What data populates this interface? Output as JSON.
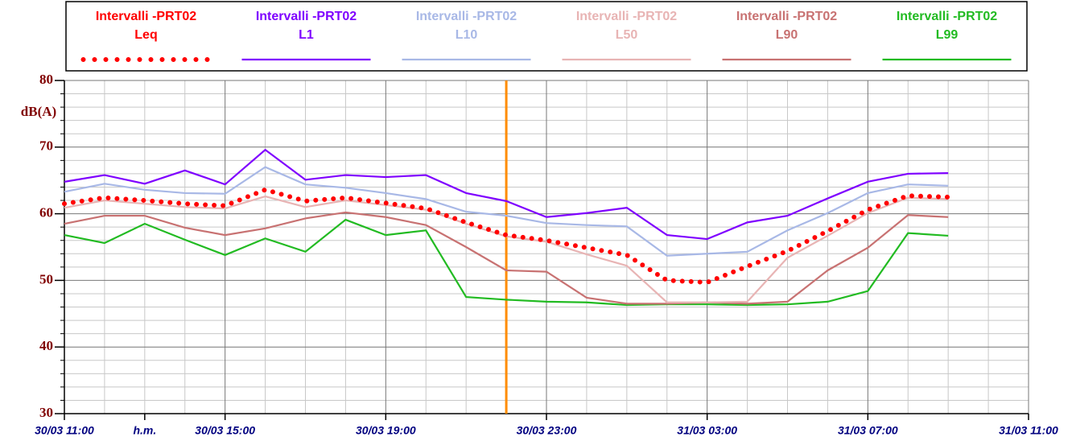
{
  "chart_data": {
    "type": "line",
    "ylabel": "dB(A)",
    "x": [
      "30/03 11:00",
      "30/03 12:00",
      "30/03 13:00",
      "30/03 14:00",
      "30/03 15:00",
      "30/03 16:00",
      "30/03 17:00",
      "30/03 18:00",
      "30/03 19:00",
      "30/03 20:00",
      "30/03 21:00",
      "30/03 22:00",
      "30/03 23:00",
      "31/03 00:00",
      "31/03 01:00",
      "31/03 02:00",
      "31/03 03:00",
      "31/03 04:00",
      "31/03 05:00",
      "31/03 06:00",
      "31/03 07:00",
      "31/03 08:00",
      "31/03 09:00"
    ],
    "series": [
      {
        "name": "Intervalli -PRT02",
        "stat": "Leq",
        "color": "#ff0000",
        "style": "dotted",
        "values": [
          61.5,
          62.4,
          62.0,
          61.5,
          61.2,
          63.6,
          61.9,
          62.4,
          61.6,
          60.8,
          58.7,
          56.8,
          56.0,
          54.9,
          53.8,
          50.0,
          49.7,
          52.1,
          54.4,
          57.4,
          60.6,
          62.7,
          62.5
        ]
      },
      {
        "name": "Intervalli -PRT02",
        "stat": "L1",
        "color": "#7f00ff",
        "style": "solid",
        "values": [
          64.8,
          65.8,
          64.5,
          66.5,
          64.4,
          69.6,
          65.1,
          65.8,
          65.5,
          65.8,
          63.1,
          61.9,
          59.5,
          60.1,
          60.9,
          56.8,
          56.2,
          58.7,
          59.7,
          62.3,
          64.8,
          66.0,
          66.1
        ]
      },
      {
        "name": "Intervalli -PRT02",
        "stat": "L10",
        "color": "#a8b8e6",
        "style": "solid",
        "values": [
          63.3,
          64.5,
          63.6,
          63.1,
          63.0,
          67.0,
          64.4,
          63.9,
          63.1,
          62.2,
          60.3,
          59.7,
          58.6,
          58.3,
          58.1,
          53.7,
          54.0,
          54.3,
          57.5,
          60.1,
          63.1,
          64.4,
          64.2
        ]
      },
      {
        "name": "Intervalli -PRT02",
        "stat": "L50",
        "color": "#e8b4b4",
        "style": "solid",
        "values": [
          60.9,
          62.0,
          61.5,
          61.0,
          60.8,
          62.6,
          61.0,
          62.0,
          61.3,
          60.6,
          58.5,
          56.6,
          55.8,
          53.9,
          52.2,
          46.7,
          46.7,
          46.8,
          53.4,
          56.7,
          60.1,
          62.4,
          62.2
        ]
      },
      {
        "name": "Intervalli -PRT02",
        "stat": "L90",
        "color": "#c87272",
        "style": "solid",
        "values": [
          58.5,
          59.7,
          59.7,
          57.9,
          56.8,
          57.8,
          59.3,
          60.2,
          59.5,
          58.3,
          55.0,
          51.5,
          51.3,
          47.4,
          46.5,
          46.5,
          46.7,
          46.5,
          46.8,
          51.5,
          54.9,
          59.8,
          59.5
        ]
      },
      {
        "name": "Intervalli -PRT02",
        "stat": "L99",
        "color": "#22bb22",
        "style": "solid",
        "values": [
          56.8,
          55.6,
          58.5,
          56.1,
          53.8,
          56.3,
          54.3,
          59.1,
          56.8,
          57.5,
          47.5,
          47.1,
          46.8,
          46.7,
          46.3,
          46.4,
          46.4,
          46.3,
          46.4,
          46.8,
          48.4,
          57.1,
          56.7
        ]
      }
    ],
    "marker": {
      "x": "30/03 22:00",
      "color": "#ff8c00"
    },
    "xlim": [
      "30/03 11:00",
      "31/03 11:00"
    ],
    "xticks": [
      "30/03 11:00",
      {
        "value": "30/03 13:00",
        "label": "h.m."
      },
      "30/03 15:00",
      "30/03 19:00",
      "30/03 23:00",
      "31/03 03:00",
      "31/03 07:00",
      "31/03 11:00"
    ],
    "xmajorgrid": [
      "30/03 15:00",
      "30/03 19:00",
      "30/03 23:00",
      "31/03 03:00",
      "31/03 07:00",
      "31/03 11:00"
    ],
    "xminorticks": [
      "30/03 12:00",
      "30/03 13:00",
      "30/03 14:00",
      "30/03 16:00",
      "30/03 17:00",
      "30/03 18:00",
      "30/03 20:00",
      "30/03 21:00",
      "30/03 22:00",
      "31/03 00:00",
      "31/03 01:00",
      "31/03 02:00",
      "31/03 04:00",
      "31/03 05:00",
      "31/03 06:00",
      "31/03 08:00",
      "31/03 09:00",
      "31/03 10:00"
    ],
    "ylim": [
      30,
      80
    ],
    "yticks": [
      30,
      40,
      50,
      60,
      70,
      80
    ],
    "yminorticks": [
      32,
      34,
      36,
      38,
      42,
      44,
      46,
      48,
      52,
      54,
      56,
      58,
      62,
      64,
      66,
      68,
      72,
      74,
      76,
      78
    ],
    "grid": true
  }
}
